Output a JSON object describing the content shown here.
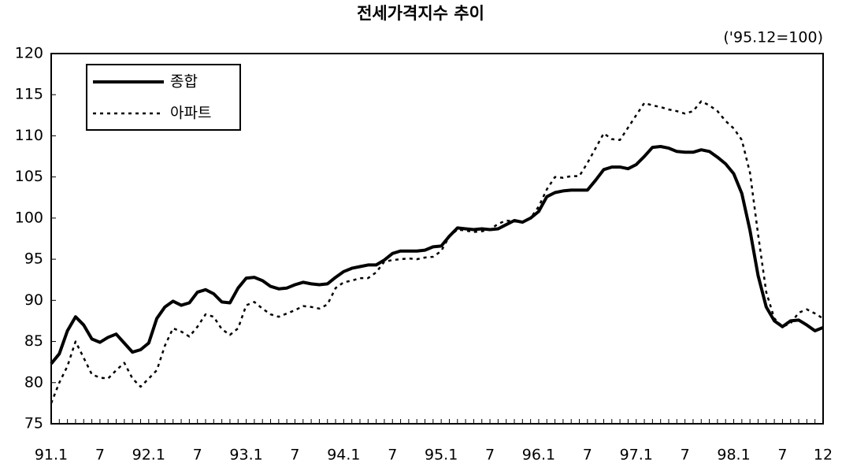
{
  "chart_data": {
    "type": "line",
    "title": "전세가격지수 추이",
    "annotation": "('95.12=100)",
    "categories": [
      "91.1",
      null,
      null,
      null,
      null,
      null,
      "7",
      null,
      null,
      null,
      null,
      null,
      "92.1",
      null,
      null,
      null,
      null,
      null,
      "7",
      null,
      null,
      null,
      null,
      null,
      "93.1",
      null,
      null,
      null,
      null,
      null,
      "7",
      null,
      null,
      null,
      null,
      null,
      "94.1",
      null,
      null,
      null,
      null,
      null,
      "7",
      null,
      null,
      null,
      null,
      null,
      "95.1",
      null,
      null,
      null,
      null,
      null,
      "7",
      null,
      null,
      null,
      null,
      null,
      "96.1",
      null,
      null,
      null,
      null,
      null,
      "7",
      null,
      null,
      null,
      null,
      null,
      "97.1",
      null,
      null,
      null,
      null,
      null,
      "7",
      null,
      null,
      null,
      null,
      null,
      "98.1",
      null,
      null,
      null,
      null,
      null,
      "7",
      null,
      null,
      null,
      null,
      "12"
    ],
    "series": [
      {
        "name": "종합",
        "color": "#000000",
        "style": "solid",
        "values": [
          82.3,
          83.5,
          86.3,
          88,
          87,
          85.3,
          84.9,
          85.5,
          85.9,
          84.8,
          83.7,
          84,
          84.8,
          87.8,
          89.2,
          89.9,
          89.4,
          89.7,
          91,
          91.3,
          90.8,
          89.8,
          89.7,
          91.5,
          92.7,
          92.8,
          92.4,
          91.7,
          91.4,
          91.5,
          91.9,
          92.2,
          92,
          91.9,
          92,
          92.8,
          93.5,
          93.9,
          94.1,
          94.3,
          94.3,
          94.9,
          95.7,
          96,
          96,
          96,
          96.1,
          96.5,
          96.6,
          97.8,
          98.8,
          98.7,
          98.6,
          98.7,
          98.6,
          98.7,
          99.2,
          99.7,
          99.5,
          100,
          100.8,
          102.6,
          103.1,
          103.3,
          103.4,
          103.4,
          103.4,
          104.6,
          105.9,
          106.2,
          106.2,
          106,
          106.5,
          107.5,
          108.6,
          108.7,
          108.5,
          108.1,
          108,
          108,
          108.3,
          108.1,
          107.4,
          106.6,
          105.4,
          103,
          98.5,
          93,
          89.2,
          87.5,
          86.8,
          87.5,
          87.6,
          87,
          86.3,
          86.7
        ]
      },
      {
        "name": "아파트",
        "color": "#000000",
        "style": "dotted",
        "values": [
          77.5,
          80,
          82,
          85,
          83,
          81,
          80.6,
          80.5,
          81.5,
          82.4,
          80.5,
          79.5,
          80.5,
          81.5,
          84.5,
          86.6,
          86.2,
          85.6,
          86.8,
          88.3,
          88,
          86.5,
          85.8,
          86.6,
          89.4,
          89.8,
          89,
          88.3,
          88,
          88.4,
          88.8,
          89.3,
          89.2,
          89,
          89.5,
          91.5,
          92.2,
          92.4,
          92.7,
          92.7,
          93.4,
          94.7,
          94.9,
          95,
          95.1,
          95,
          95.2,
          95.3,
          96,
          97.8,
          98.6,
          98.5,
          98.3,
          98.4,
          98.6,
          99.3,
          99.7,
          99.6,
          99.5,
          100,
          101.4,
          103.5,
          105,
          104.9,
          105.1,
          105.1,
          106.7,
          108.5,
          110.3,
          109.6,
          109.5,
          111,
          112.5,
          114,
          113.7,
          113.5,
          113.2,
          113,
          112.7,
          113,
          114.2,
          113.7,
          113,
          111.8,
          110.9,
          109.5,
          105.5,
          98,
          91,
          87.8,
          86.8,
          87.2,
          88.5,
          88.9,
          88.4,
          87.8
        ]
      }
    ],
    "ylim": [
      75,
      120
    ],
    "yticks": [
      75,
      80,
      85,
      90,
      95,
      100,
      105,
      110,
      115,
      120
    ],
    "grid": false,
    "legend": "upper left"
  }
}
